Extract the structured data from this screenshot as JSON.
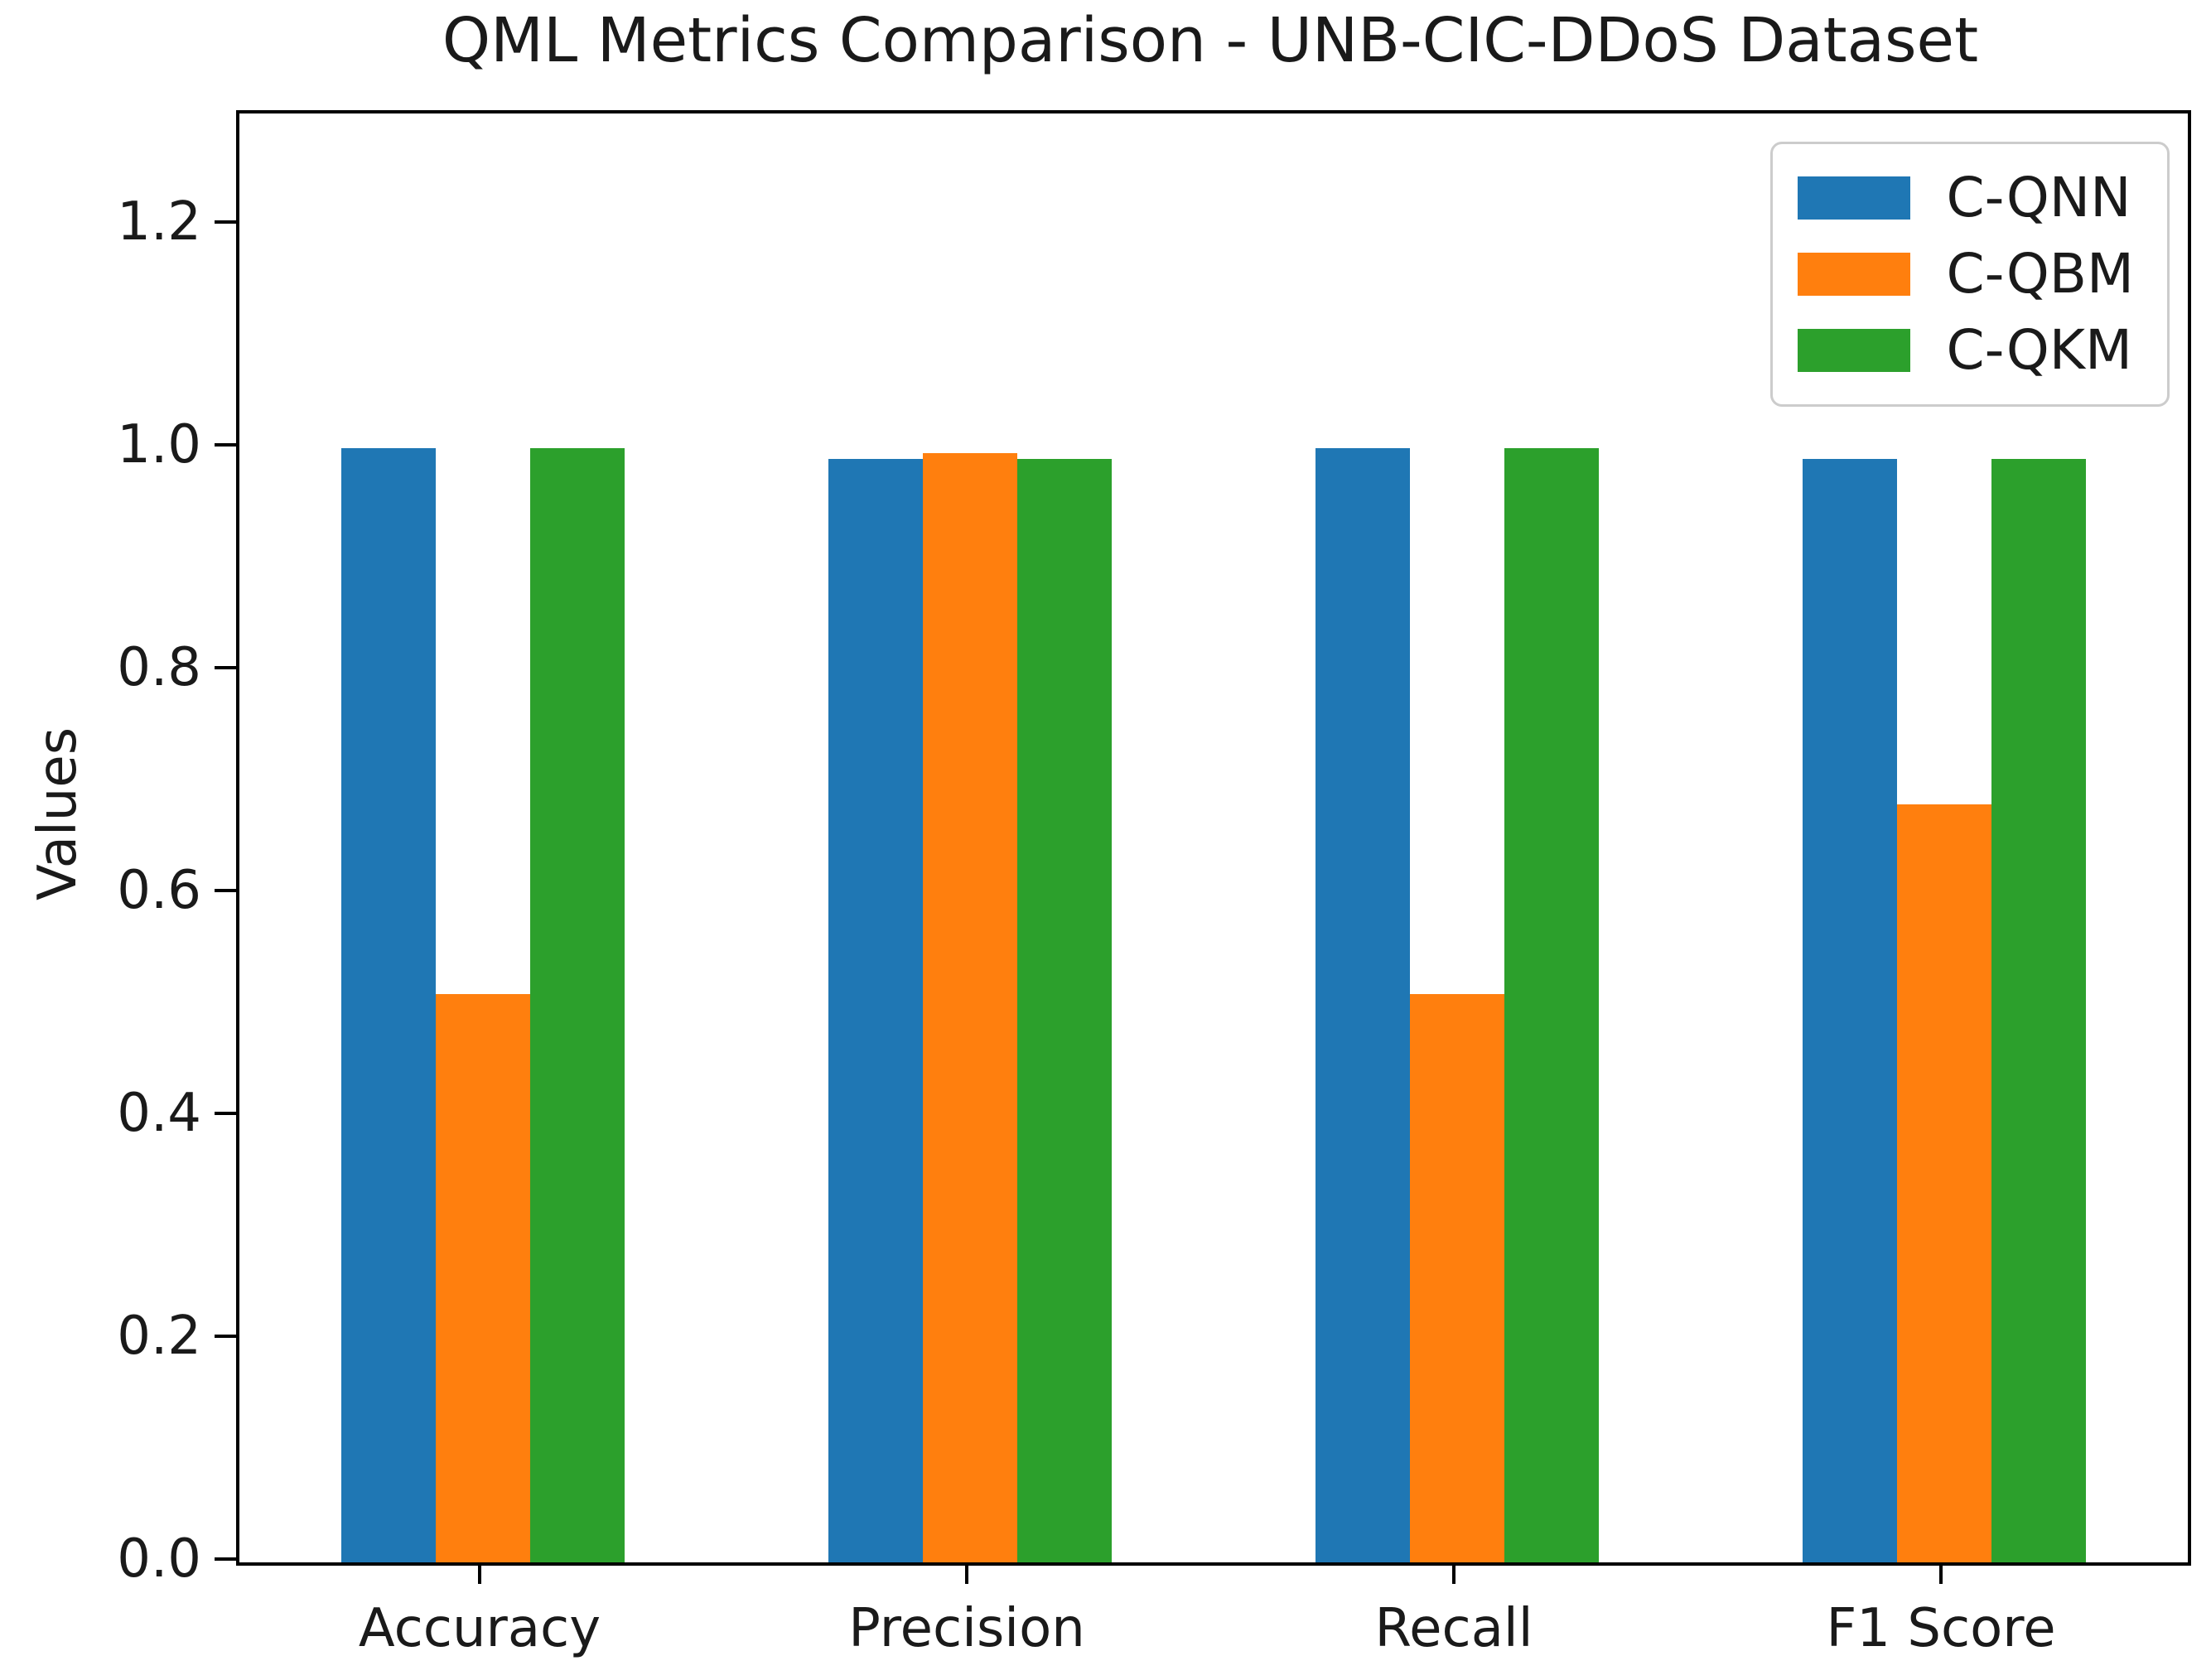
{
  "chart_data": {
    "type": "bar",
    "title": "QML Metrics Comparison - UNB-CIC-DDoS Dataset",
    "ylabel": "Values",
    "xlabel": "",
    "categories": [
      "Accuracy",
      "Precision",
      "Recall",
      "F1 Score"
    ],
    "series": [
      {
        "name": "C-QNN",
        "color": "#1f77b4",
        "values": [
          1.0,
          0.99,
          1.0,
          0.99
        ]
      },
      {
        "name": "C-QBM",
        "color": "#ff7f0e",
        "values": [
          0.51,
          0.995,
          0.51,
          0.68
        ]
      },
      {
        "name": "C-QKM",
        "color": "#2ca02c",
        "values": [
          1.0,
          0.99,
          1.0,
          0.99
        ]
      }
    ],
    "yticks": [
      0.0,
      0.2,
      0.4,
      0.6,
      0.8,
      1.0,
      1.2
    ],
    "ylim": [
      0,
      1.3
    ],
    "legend": {
      "position": "upper right"
    },
    "grid": false,
    "axis_color": "#000000",
    "background_color": "#ffffff"
  }
}
